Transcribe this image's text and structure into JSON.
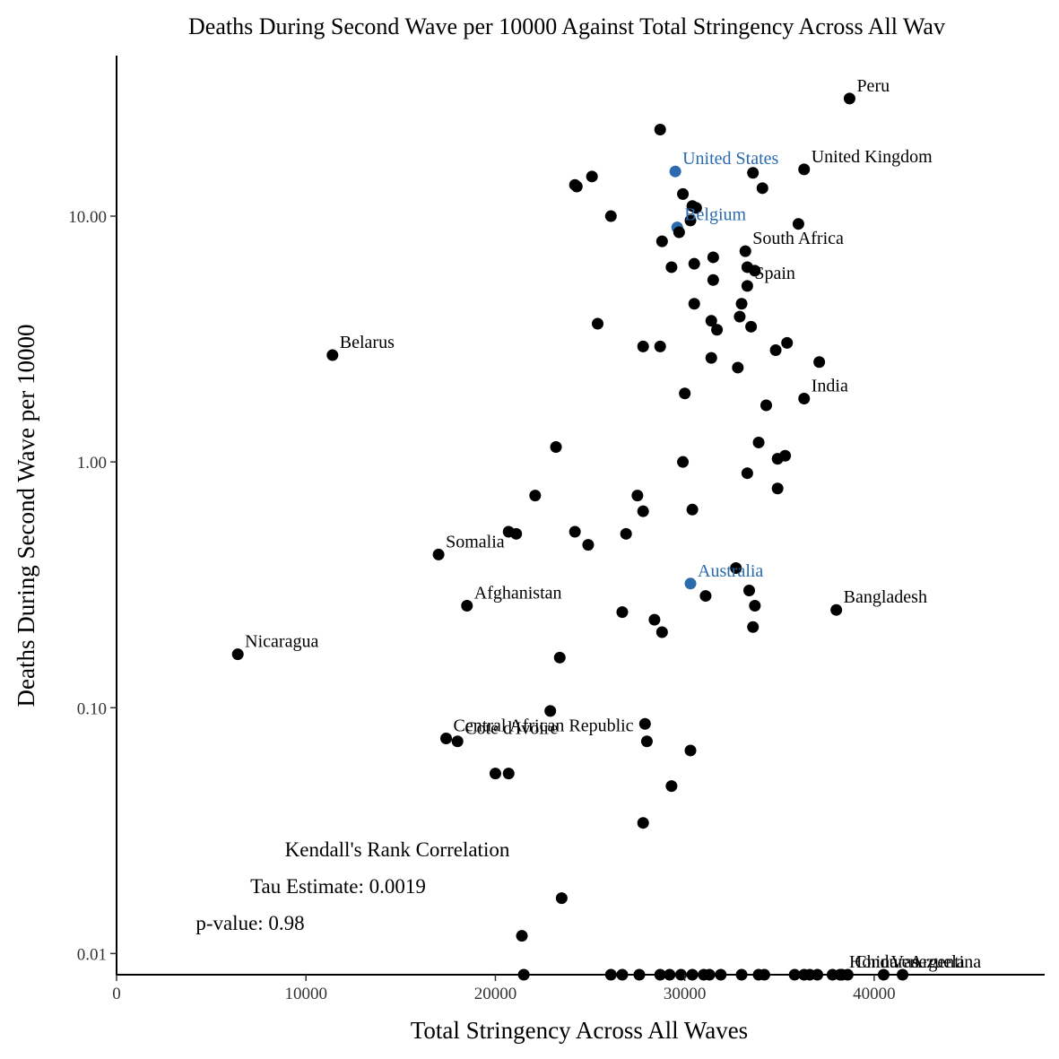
{
  "chart_data": {
    "type": "scatter",
    "title": "Deaths During Second Wave per 10000 Against Total Stringency Across All Wav",
    "xlabel": "Total Stringency Across All Waves",
    "ylabel": "Deaths During Second Wave per 10000",
    "x_scale": "linear",
    "y_scale": "log10",
    "xlim": [
      0,
      49000
    ],
    "ylim": [
      0.0082,
      45
    ],
    "x_ticks": [
      0,
      10000,
      20000,
      30000,
      40000
    ],
    "x_tick_labels": [
      "0",
      "10000",
      "20000",
      "30000",
      "40000"
    ],
    "y_ticks": [
      0.01,
      0.1,
      1,
      10
    ],
    "y_tick_labels": [
      "0.01",
      "0.10",
      "1.00",
      "10.00"
    ],
    "grid": false,
    "colors": {
      "default": "#000000",
      "highlight": "#2a6aad"
    },
    "annotations": [
      "Kendall's Rank Correlation",
      "Tau Estimate: 0.0019",
      "p-value: 0.98"
    ],
    "points": [
      {
        "x": 38700,
        "y": 30.1,
        "label": "Peru"
      },
      {
        "x": 29500,
        "y": 15.2,
        "label": "United States",
        "highlight": true
      },
      {
        "x": 36300,
        "y": 15.5,
        "label": "United Kingdom"
      },
      {
        "x": 29600,
        "y": 9.0,
        "label": "Belgium",
        "highlight": true
      },
      {
        "x": 33200,
        "y": 7.2,
        "label": "South Africa"
      },
      {
        "x": 33300,
        "y": 5.2,
        "label": "Spain"
      },
      {
        "x": 11400,
        "y": 2.72,
        "label": "Belarus"
      },
      {
        "x": 36300,
        "y": 1.81,
        "label": "India"
      },
      {
        "x": 17000,
        "y": 0.42,
        "label": "Somalia"
      },
      {
        "x": 30300,
        "y": 0.32,
        "label": "Australia",
        "highlight": true
      },
      {
        "x": 18500,
        "y": 0.26,
        "label": "Afghanistan"
      },
      {
        "x": 38000,
        "y": 0.25,
        "label": "Bangladesh"
      },
      {
        "x": 6400,
        "y": 0.165,
        "label": "Nicaragua"
      },
      {
        "x": 17400,
        "y": 0.075,
        "label": "Central African Republic"
      },
      {
        "x": 18000,
        "y": 0.073,
        "label": "Cote d'Ivoire"
      },
      {
        "x": 38600,
        "y": 0.0082,
        "label": "China"
      },
      {
        "x": 40500,
        "y": 0.0082,
        "label": "Venezuela"
      },
      {
        "x": 41500,
        "y": 0.0082,
        "label": "Argentina"
      },
      {
        "x": 38300,
        "y": 0.0082,
        "label": "Honduras"
      },
      {
        "x": 28700,
        "y": 22.5
      },
      {
        "x": 25100,
        "y": 14.5
      },
      {
        "x": 24200,
        "y": 13.4
      },
      {
        "x": 24300,
        "y": 13.2
      },
      {
        "x": 33600,
        "y": 15.0
      },
      {
        "x": 34100,
        "y": 13.0
      },
      {
        "x": 29900,
        "y": 12.3
      },
      {
        "x": 30400,
        "y": 11.0
      },
      {
        "x": 30600,
        "y": 10.8
      },
      {
        "x": 26100,
        "y": 10.0
      },
      {
        "x": 30300,
        "y": 9.6
      },
      {
        "x": 36000,
        "y": 9.3
      },
      {
        "x": 29700,
        "y": 8.6
      },
      {
        "x": 28800,
        "y": 7.9
      },
      {
        "x": 31500,
        "y": 6.8
      },
      {
        "x": 30500,
        "y": 6.4
      },
      {
        "x": 29300,
        "y": 6.2
      },
      {
        "x": 33300,
        "y": 6.2
      },
      {
        "x": 33700,
        "y": 6.0
      },
      {
        "x": 31500,
        "y": 5.5
      },
      {
        "x": 33000,
        "y": 4.4
      },
      {
        "x": 30500,
        "y": 4.4
      },
      {
        "x": 32900,
        "y": 3.9
      },
      {
        "x": 31400,
        "y": 3.75
      },
      {
        "x": 25400,
        "y": 3.65
      },
      {
        "x": 33500,
        "y": 3.55
      },
      {
        "x": 31700,
        "y": 3.45
      },
      {
        "x": 35400,
        "y": 3.05
      },
      {
        "x": 27800,
        "y": 2.95
      },
      {
        "x": 28700,
        "y": 2.95
      },
      {
        "x": 34800,
        "y": 2.85
      },
      {
        "x": 31400,
        "y": 2.65
      },
      {
        "x": 37100,
        "y": 2.55
      },
      {
        "x": 32800,
        "y": 2.42
      },
      {
        "x": 30000,
        "y": 1.9
      },
      {
        "x": 34300,
        "y": 1.7
      },
      {
        "x": 33900,
        "y": 1.2
      },
      {
        "x": 23200,
        "y": 1.15
      },
      {
        "x": 35300,
        "y": 1.06
      },
      {
        "x": 34900,
        "y": 1.03
      },
      {
        "x": 29900,
        "y": 1.0
      },
      {
        "x": 33300,
        "y": 0.9
      },
      {
        "x": 34900,
        "y": 0.78
      },
      {
        "x": 22100,
        "y": 0.73
      },
      {
        "x": 27500,
        "y": 0.73
      },
      {
        "x": 30400,
        "y": 0.64
      },
      {
        "x": 27800,
        "y": 0.63
      },
      {
        "x": 20700,
        "y": 0.52
      },
      {
        "x": 21100,
        "y": 0.51
      },
      {
        "x": 24200,
        "y": 0.52
      },
      {
        "x": 26900,
        "y": 0.51
      },
      {
        "x": 24900,
        "y": 0.46
      },
      {
        "x": 32700,
        "y": 0.37
      },
      {
        "x": 33400,
        "y": 0.3
      },
      {
        "x": 31100,
        "y": 0.285
      },
      {
        "x": 33700,
        "y": 0.26
      },
      {
        "x": 26700,
        "y": 0.245
      },
      {
        "x": 28400,
        "y": 0.228
      },
      {
        "x": 33600,
        "y": 0.213
      },
      {
        "x": 28800,
        "y": 0.203
      },
      {
        "x": 23400,
        "y": 0.16
      },
      {
        "x": 22900,
        "y": 0.097
      },
      {
        "x": 27900,
        "y": 0.086
      },
      {
        "x": 28000,
        "y": 0.073
      },
      {
        "x": 30300,
        "y": 0.067
      },
      {
        "x": 20000,
        "y": 0.054
      },
      {
        "x": 20700,
        "y": 0.054
      },
      {
        "x": 29300,
        "y": 0.048
      },
      {
        "x": 27800,
        "y": 0.034
      },
      {
        "x": 23500,
        "y": 0.0168
      },
      {
        "x": 21400,
        "y": 0.0118
      },
      {
        "x": 21500,
        "y": 0.0082
      },
      {
        "x": 26100,
        "y": 0.0082
      },
      {
        "x": 26700,
        "y": 0.0082
      },
      {
        "x": 27600,
        "y": 0.0082
      },
      {
        "x": 28700,
        "y": 0.0082
      },
      {
        "x": 29200,
        "y": 0.0082
      },
      {
        "x": 29800,
        "y": 0.0082
      },
      {
        "x": 30400,
        "y": 0.0082
      },
      {
        "x": 31000,
        "y": 0.0082
      },
      {
        "x": 31300,
        "y": 0.0082
      },
      {
        "x": 31900,
        "y": 0.0082
      },
      {
        "x": 33000,
        "y": 0.0082
      },
      {
        "x": 33900,
        "y": 0.0082
      },
      {
        "x": 34200,
        "y": 0.0082
      },
      {
        "x": 35800,
        "y": 0.0082
      },
      {
        "x": 36300,
        "y": 0.0082
      },
      {
        "x": 36600,
        "y": 0.0082
      },
      {
        "x": 37000,
        "y": 0.0082
      },
      {
        "x": 37800,
        "y": 0.0082
      },
      {
        "x": 38200,
        "y": 0.0082
      }
    ]
  }
}
